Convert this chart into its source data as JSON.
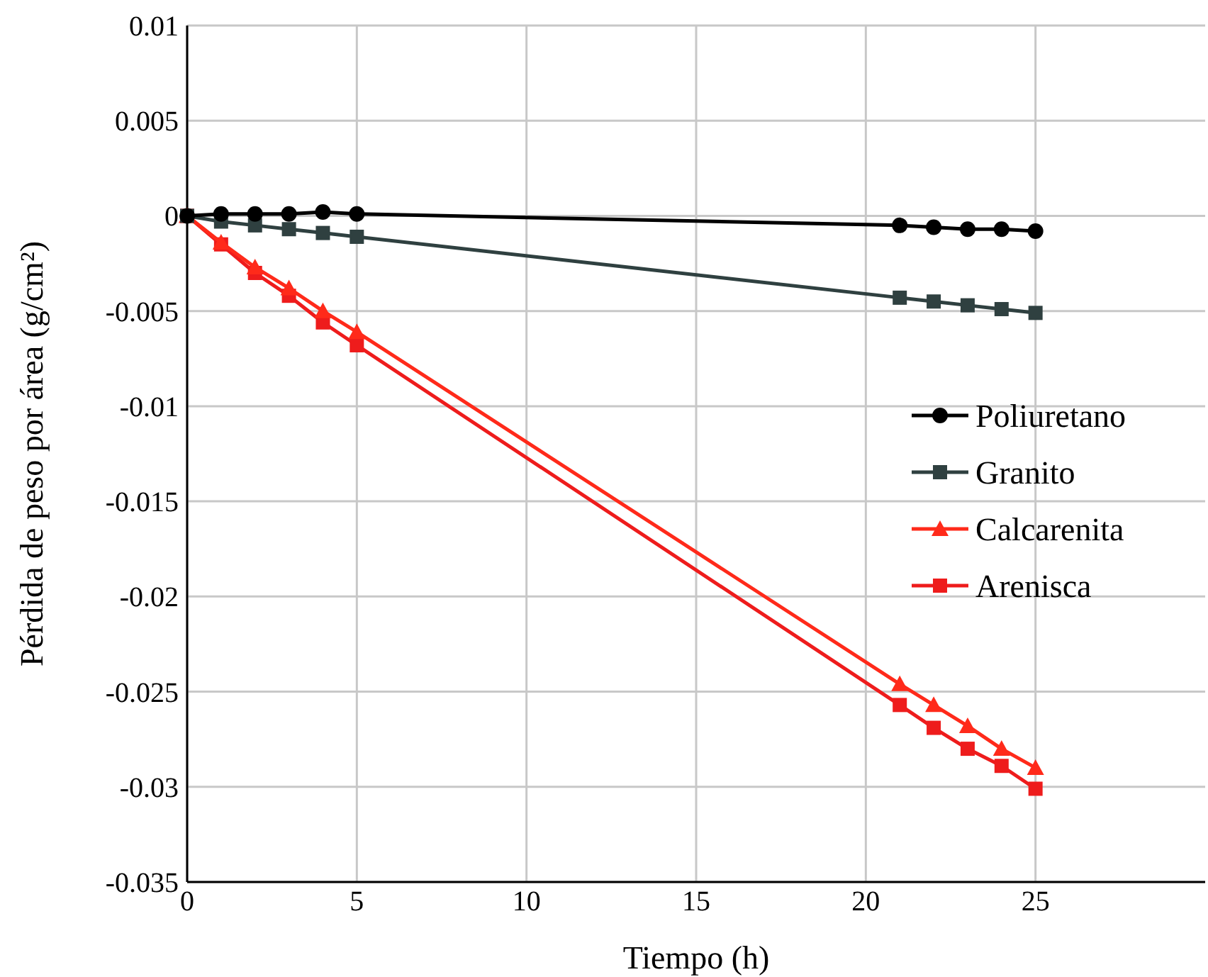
{
  "chart_data": {
    "type": "line",
    "xlabel": "Tiempo (h)",
    "ylabel": "Pérdida de peso por área  (g/cm²)",
    "x": [
      0,
      1,
      2,
      3,
      4,
      5,
      21,
      22,
      23,
      24,
      25
    ],
    "series": [
      {
        "name": "Poliuretano",
        "color": "#000000",
        "marker": "circle",
        "values": [
          0,
          0.0001,
          0.0001,
          0.0001,
          0.0002,
          0.0001,
          -0.0005,
          -0.0006,
          -0.0007,
          -0.0007,
          -0.0008
        ]
      },
      {
        "name": "Granito",
        "color": "#2f4040",
        "marker": "square",
        "values": [
          0,
          -0.0003,
          -0.0005,
          -0.0007,
          -0.0009,
          -0.0011,
          -0.0043,
          -0.0045,
          -0.0047,
          -0.0049,
          -0.0051
        ]
      },
      {
        "name": "Calcarenita",
        "color": "#ff2a1a",
        "marker": "triangle",
        "values": [
          0,
          -0.0014,
          -0.0027,
          -0.0038,
          -0.005,
          -0.0061,
          -0.0246,
          -0.0257,
          -0.0268,
          -0.028,
          -0.029
        ]
      },
      {
        "name": "Arenisca",
        "color": "#ee1c1c",
        "marker": "square",
        "values": [
          0,
          -0.0015,
          -0.003,
          -0.0042,
          -0.0056,
          -0.0068,
          -0.0257,
          -0.0269,
          -0.028,
          -0.0289,
          -0.0301
        ]
      }
    ],
    "xlim": [
      0,
      30
    ],
    "xticks": [
      0,
      5,
      10,
      15,
      20,
      25
    ],
    "ylim": [
      -0.035,
      0.01
    ],
    "yticks": [
      -0.035,
      -0.03,
      -0.025,
      -0.02,
      -0.015,
      -0.01,
      -0.005,
      0,
      0.005,
      0.01
    ],
    "grid": true,
    "legend": "right"
  }
}
